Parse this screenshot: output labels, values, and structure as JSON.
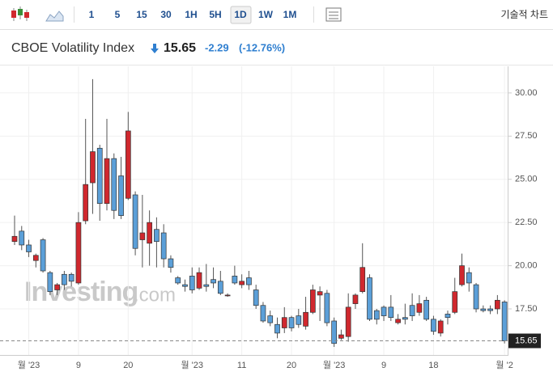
{
  "toolbar": {
    "intervals": [
      "1",
      "5",
      "15",
      "30",
      "1H",
      "5H",
      "1D",
      "1W",
      "1M"
    ],
    "selected": "1D",
    "technical": "기술적 차트"
  },
  "header": {
    "title": "CBOE Volatility Index",
    "price": "15.65",
    "change": "-2.29",
    "change_pct": "(-12.76%)"
  },
  "chart_data": {
    "type": "candlestick",
    "watermark": "Investing",
    "watermark_suffix": ".com",
    "categories": [
      null,
      null,
      "월 '23",
      null,
      null,
      null,
      null,
      null,
      null,
      "9",
      null,
      null,
      null,
      null,
      null,
      null,
      "20",
      null,
      null,
      null,
      null,
      null,
      null,
      null,
      null,
      "월 '23",
      null,
      null,
      null,
      null,
      null,
      null,
      "11",
      null,
      null,
      null,
      null,
      null,
      null,
      "20",
      null,
      null,
      null,
      null,
      null,
      "월 '23",
      null,
      null,
      null,
      null,
      null,
      null,
      "9",
      null,
      null,
      null,
      null,
      null,
      null,
      "18",
      null,
      null,
      null,
      null,
      null,
      null,
      null,
      null,
      null,
      "월 '2"
    ],
    "open": [
      21.4,
      22.0,
      21.2,
      20.3,
      21.5,
      19.6,
      18.6,
      19.5,
      19.5,
      19.0,
      22.6,
      24.8,
      26.8,
      23.6,
      26.2,
      25.2,
      23.9,
      24.1,
      21.5,
      21.3,
      22.1,
      21.9,
      20.4,
      19.3,
      18.9,
      19.4,
      18.7,
      18.9,
      19.2,
      19.1,
      18.3,
      19.4,
      18.9,
      19.3,
      18.6,
      17.7,
      17.1,
      16.6,
      16.4,
      17.0,
      17.1,
      16.5,
      17.3,
      18.3,
      18.4,
      16.8,
      15.8,
      15.9,
      17.8,
      18.5,
      19.3,
      17.4,
      17.6,
      17.6,
      16.7,
      17.0,
      17.7,
      17.3,
      18.0,
      16.9,
      16.1,
      17.2,
      17.3,
      18.9,
      19.6,
      18.9,
      17.5,
      17.5,
      17.5,
      17.9
    ],
    "high": [
      22.9,
      22.3,
      21.5,
      20.7,
      21.6,
      19.7,
      19.0,
      19.7,
      19.6,
      23.1,
      28.5,
      30.8,
      27.0,
      28.5,
      26.5,
      26.3,
      28.9,
      24.3,
      24.1,
      23.2,
      22.8,
      22.4,
      20.6,
      19.4,
      19.2,
      19.9,
      19.9,
      20.1,
      19.9,
      19.7,
      18.4,
      20.0,
      19.5,
      19.7,
      18.9,
      17.9,
      17.4,
      17.0,
      17.6,
      17.1,
      17.5,
      18.2,
      18.9,
      18.8,
      18.6,
      17.0,
      16.3,
      18.4,
      18.4,
      21.3,
      19.5,
      17.5,
      17.7,
      18.3,
      17.2,
      17.8,
      18.4,
      18.3,
      18.2,
      17.1,
      16.9,
      17.4,
      19.3,
      20.7,
      19.9,
      19.0,
      17.7,
      17.7,
      18.3,
      18.0
    ],
    "low": [
      21.2,
      20.9,
      20.5,
      19.9,
      19.6,
      18.3,
      18.3,
      18.6,
      18.8,
      18.9,
      22.4,
      23.0,
      22.6,
      23.2,
      22.7,
      22.7,
      23.8,
      20.6,
      19.9,
      20.0,
      19.9,
      19.9,
      19.6,
      18.9,
      18.5,
      18.4,
      18.6,
      18.5,
      18.7,
      18.3,
      18.2,
      18.9,
      18.7,
      18.6,
      17.5,
      16.7,
      16.5,
      15.8,
      16.1,
      16.2,
      16.4,
      16.3,
      17.2,
      16.8,
      16.5,
      15.3,
      15.7,
      15.6,
      17.5,
      18.4,
      16.8,
      16.6,
      16.8,
      16.8,
      16.6,
      16.6,
      16.8,
      17.1,
      16.8,
      16.0,
      15.9,
      16.6,
      17.2,
      18.8,
      18.5,
      17.3,
      17.3,
      17.2,
      17.2,
      15.5
    ],
    "close": [
      21.7,
      21.2,
      20.8,
      20.6,
      19.7,
      18.5,
      18.9,
      18.9,
      19.1,
      22.5,
      24.7,
      26.6,
      23.6,
      26.2,
      23.2,
      22.9,
      27.8,
      21.0,
      21.9,
      22.5,
      21.4,
      20.4,
      19.9,
      19.0,
      18.8,
      18.6,
      19.6,
      18.8,
      19.0,
      18.4,
      18.3,
      19.0,
      19.1,
      18.9,
      17.7,
      16.8,
      16.7,
      16.1,
      17.0,
      16.4,
      16.6,
      17.3,
      18.6,
      18.5,
      16.7,
      15.5,
      16.0,
      17.6,
      18.3,
      19.9,
      16.9,
      16.9,
      17.1,
      17.0,
      16.9,
      16.9,
      17.1,
      17.8,
      16.9,
      16.2,
      16.8,
      17.0,
      18.5,
      20.0,
      19.0,
      17.5,
      17.4,
      17.4,
      18.0,
      15.65
    ],
    "up_color": "#d0282e",
    "down_color": "#5b9fd8",
    "last_value": 15.65,
    "ylim": [
      15.02,
      31.26
    ],
    "yticks": [
      {
        "value": 17.5,
        "label": "17.50"
      },
      {
        "value": 20,
        "label": "20.00"
      },
      {
        "value": 22.5,
        "label": "22.50"
      },
      {
        "value": 25,
        "label": "25.00"
      },
      {
        "value": 27.5,
        "label": "27.50"
      },
      {
        "value": 30,
        "label": "30.00"
      }
    ],
    "grid": true
  }
}
